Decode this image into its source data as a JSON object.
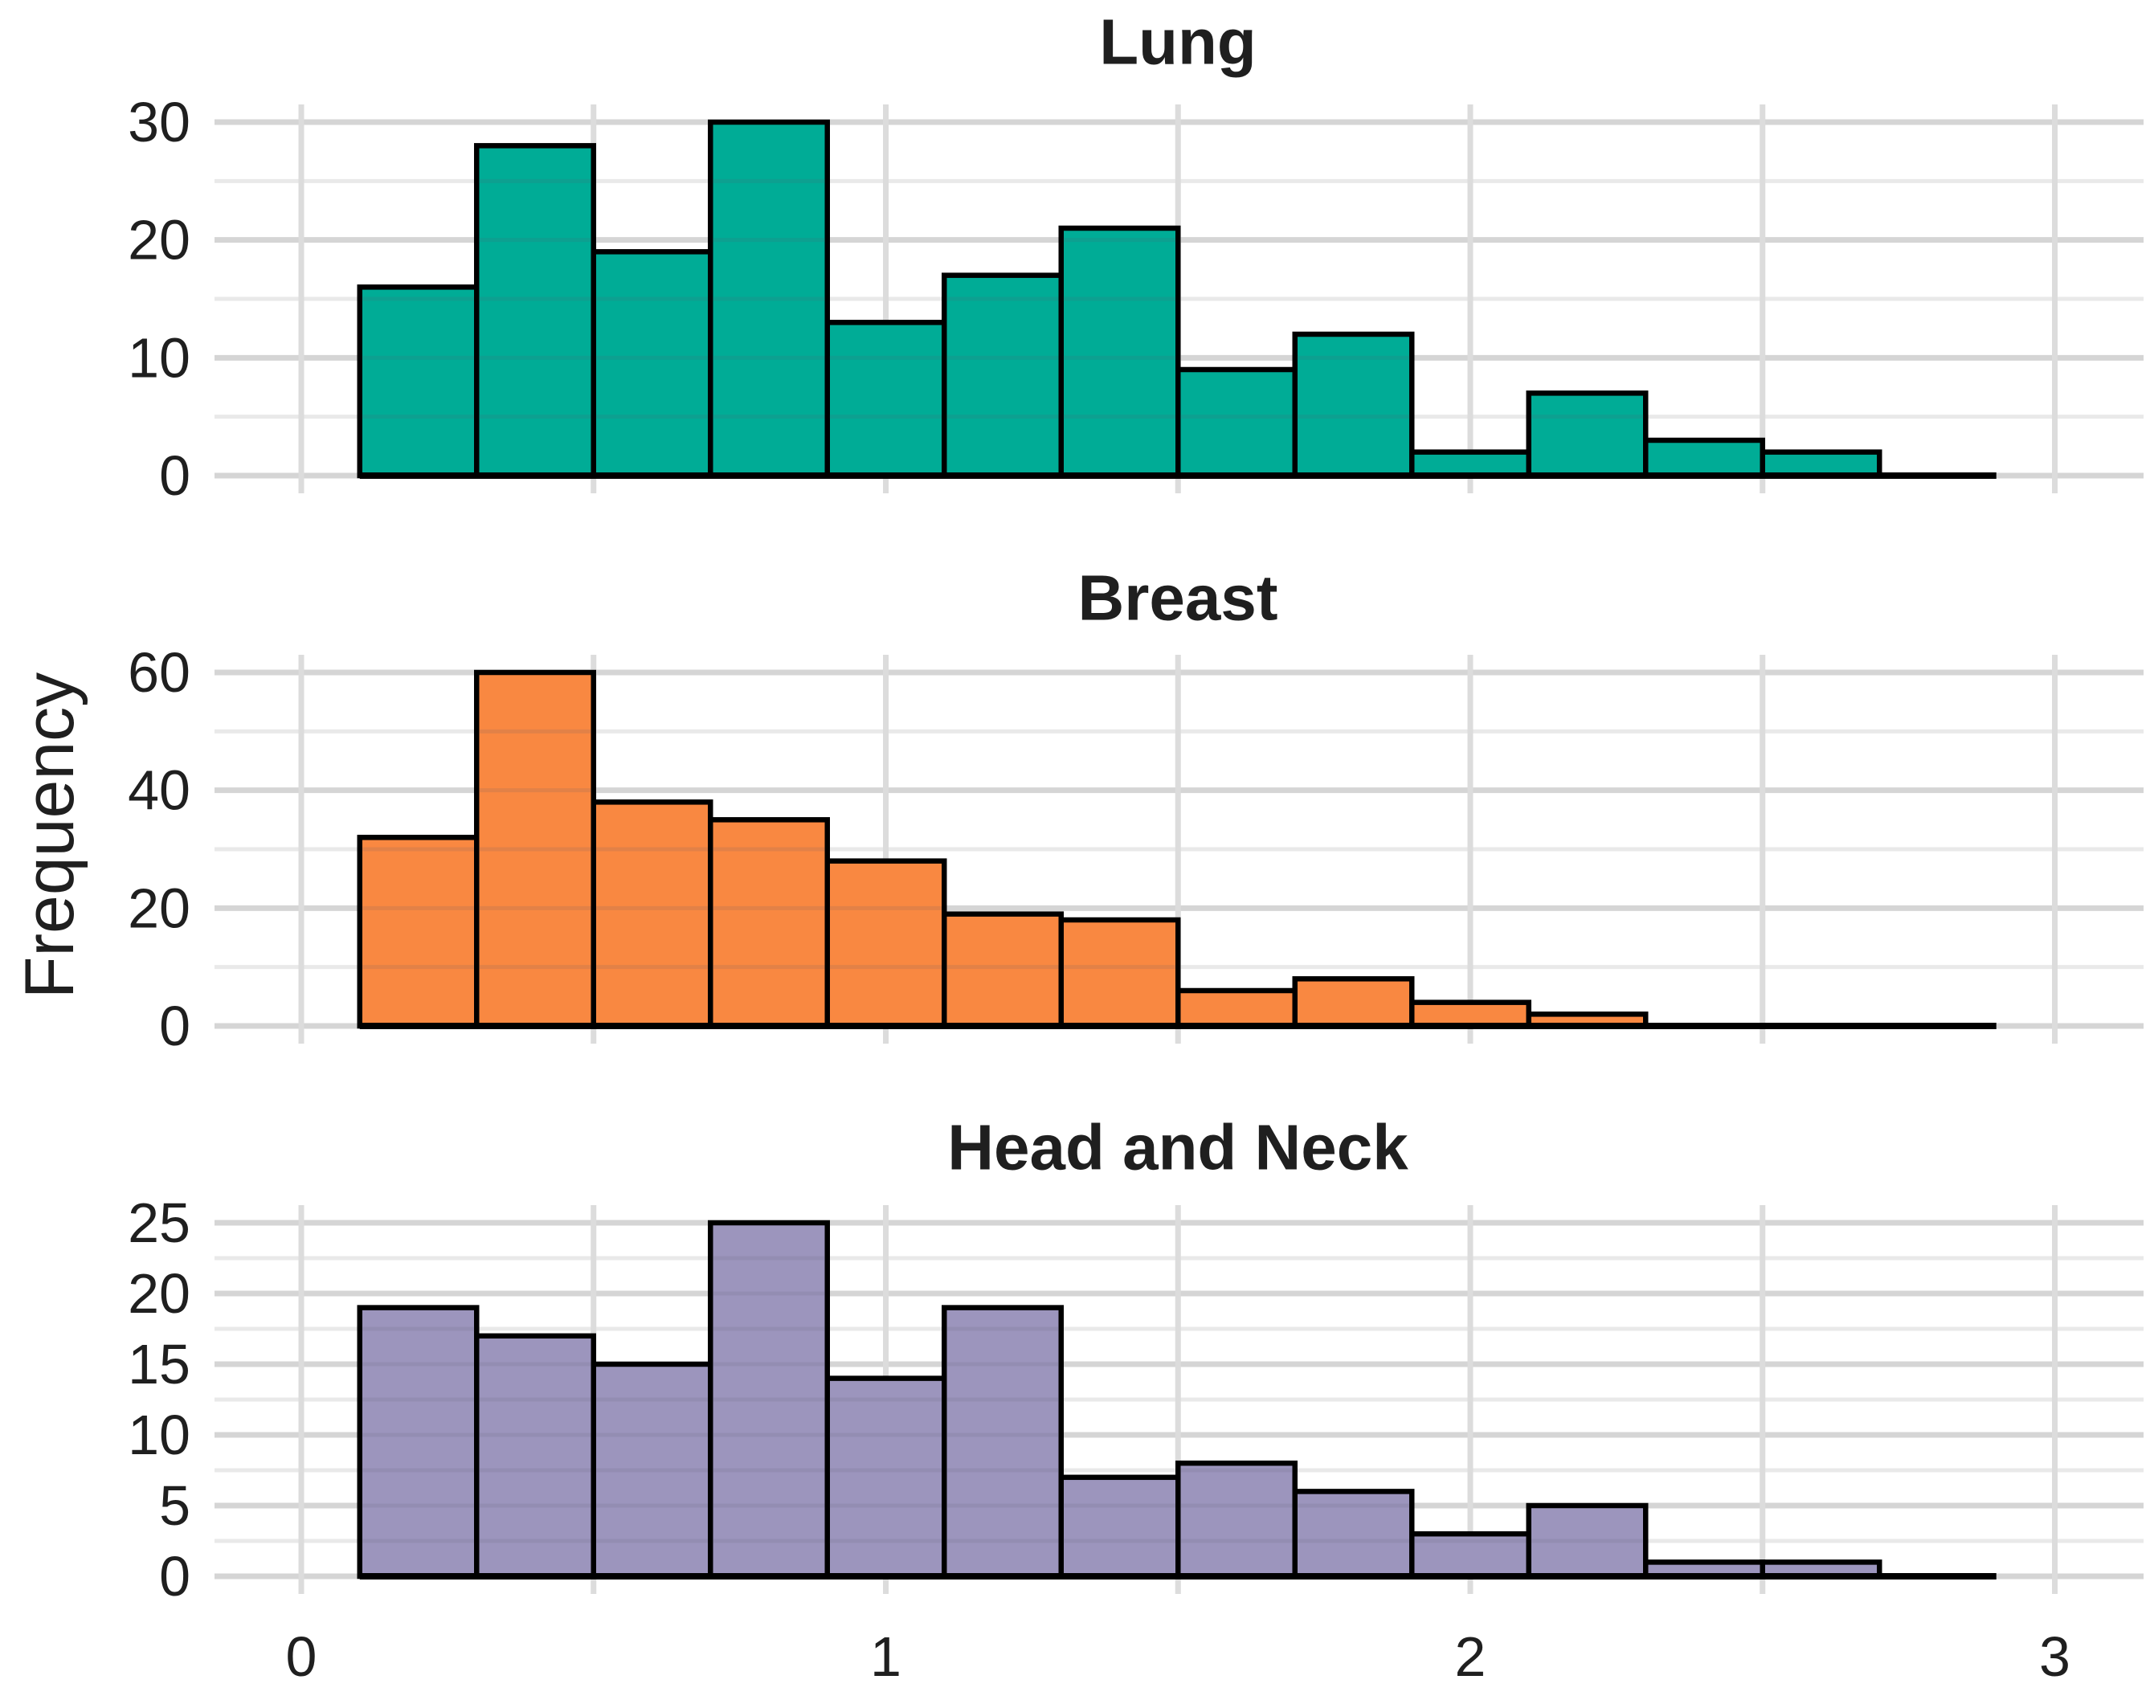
{
  "figure": {
    "ylabel": "Frequency"
  },
  "chart_data": {
    "type": "bar",
    "subtype": "histogram",
    "layout": "three vertically stacked panels sharing one x axis",
    "grid": "on",
    "x_axis": {
      "label": "",
      "ticks": [
        "0",
        "1",
        "2",
        "3"
      ],
      "tick_values": [
        0,
        1,
        2,
        3
      ],
      "range": [
        -0.15,
        3.15
      ],
      "gridline_step": 0.5
    },
    "bin_start": 0.1,
    "bin_width": 0.2,
    "baseline_start": 0.1,
    "baseline_extends_to": 2.9,
    "panels": [
      {
        "title": "Lung",
        "color": "#00AC96",
        "bar_edge_color": "#000000",
        "ylim": [
          0,
          30
        ],
        "y_major_ticks": [
          "30",
          "20",
          "10",
          "0"
        ],
        "y_major_tick_values": [
          30,
          20,
          10,
          0
        ],
        "y_minor_step": 5,
        "counts": [
          16,
          28,
          19,
          30,
          13,
          17,
          21,
          9,
          12,
          2,
          7,
          3,
          2
        ]
      },
      {
        "title": "Breast",
        "color": "#F98841",
        "bar_edge_color": "#000000",
        "ylim": [
          0,
          60
        ],
        "y_major_ticks": [
          "60",
          "40",
          "20",
          "0"
        ],
        "y_major_tick_values": [
          60,
          40,
          20,
          0
        ],
        "y_minor_step": 10,
        "counts": [
          32,
          60,
          38,
          35,
          28,
          19,
          18,
          6,
          8,
          4,
          2
        ]
      },
      {
        "title": "Head and Neck",
        "color": "#9C95BD",
        "bar_edge_color": "#000000",
        "ylim": [
          0,
          25
        ],
        "y_major_ticks": [
          "25",
          "20",
          "15",
          "10",
          "5",
          "0"
        ],
        "y_major_tick_values": [
          25,
          20,
          15,
          10,
          5,
          0
        ],
        "y_minor_step": 2.5,
        "counts": [
          19,
          17,
          15,
          25,
          14,
          19,
          7,
          8,
          6,
          3,
          5,
          1,
          1
        ]
      }
    ]
  },
  "styles": {
    "background": "#ffffff",
    "major_gridline_color": "#d5d5d5",
    "minor_gridline_color": "#e9e9e9",
    "vertical_gridline_color": "#dcdcdc",
    "axis_line_color": "#000000",
    "text_color": "#1f1f1f"
  }
}
